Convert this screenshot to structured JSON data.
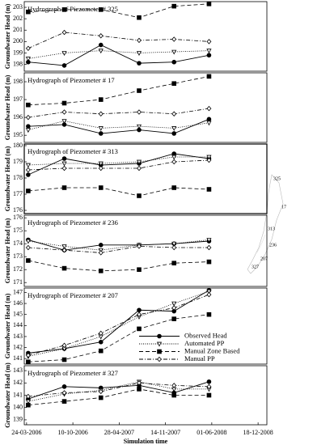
{
  "chart_data": [
    {
      "type": "line",
      "title": "Hydrograph of Piezometer # 325",
      "ylabel": "Groundwater Head (m)",
      "x": [
        "31-03-2006",
        "03-09-2006",
        "08-02-2007",
        "23-07-2007",
        "21-12-2007",
        "20-05-2008"
      ],
      "xlim": [
        "14-03-2006",
        "25-01-2009"
      ],
      "ylim": [
        197.4,
        203.5
      ],
      "yticks": [
        198,
        199,
        200,
        201,
        202,
        203
      ],
      "series": [
        {
          "color": "#000000",
          "line_style": "solid",
          "marker": "circle-filled",
          "values": [
            198.2,
            197.9,
            199.7,
            198.1,
            198.2,
            198.8
          ]
        },
        {
          "color": "#000000",
          "line_style": "dotted",
          "marker": "triangle-open",
          "values": [
            198.5,
            199.0,
            199.2,
            199.0,
            199.1,
            199.2
          ]
        },
        {
          "color": "#000000",
          "line_style": "dashed",
          "marker": "square-filled",
          "values": [
            202.6,
            202.8,
            202.8,
            202.1,
            203.1,
            203.3
          ]
        },
        {
          "color": "#000000",
          "line_style": "dashdot",
          "marker": "diamond-open",
          "values": [
            199.4,
            200.8,
            200.5,
            200.1,
            200.2,
            200.0
          ]
        }
      ]
    },
    {
      "type": "line",
      "title": "Hydrograph of Piezometer # 17",
      "ylabel": "Groundwater Head (m)",
      "x": [
        "31-03-2006",
        "03-09-2006",
        "08-02-2007",
        "23-07-2007",
        "21-12-2007",
        "20-05-2008"
      ],
      "xlim": [
        "14-03-2006",
        "25-01-2009"
      ],
      "ylim": [
        194.6,
        198.5
      ],
      "yticks": [
        195,
        196,
        197,
        198
      ],
      "series": [
        {
          "color": "#000000",
          "line_style": "solid",
          "marker": "circle-filled",
          "values": [
            195.5,
            195.6,
            195.1,
            195.3,
            195.1,
            195.9
          ]
        },
        {
          "color": "#000000",
          "line_style": "dotted",
          "marker": "triangle-open",
          "values": [
            195.3,
            195.8,
            195.4,
            195.5,
            195.4,
            195.7
          ]
        },
        {
          "color": "#000000",
          "line_style": "dashed",
          "marker": "square-filled",
          "values": [
            196.7,
            196.8,
            197.0,
            197.5,
            197.9,
            198.3
          ]
        },
        {
          "color": "#000000",
          "line_style": "dashdot",
          "marker": "diamond-open",
          "values": [
            196.0,
            196.3,
            196.2,
            196.3,
            196.2,
            196.5
          ]
        }
      ]
    },
    {
      "type": "line",
      "title": "Hydrograph of Piezometer # 313",
      "ylabel": "Groundwater Head (m)",
      "x": [
        "31-03-2006",
        "03-09-2006",
        "08-02-2007",
        "23-07-2007",
        "21-12-2007",
        "20-05-2008"
      ],
      "xlim": [
        "14-03-2006",
        "25-01-2009"
      ],
      "ylim": [
        175.8,
        180.1
      ],
      "yticks": [
        176,
        177,
        178,
        179,
        180
      ],
      "series": [
        {
          "color": "#000000",
          "line_style": "solid",
          "marker": "circle-filled",
          "values": [
            178.2,
            179.2,
            178.8,
            178.9,
            179.5,
            179.2
          ]
        },
        {
          "color": "#000000",
          "line_style": "dotted",
          "marker": "triangle-open",
          "values": [
            178.8,
            178.9,
            178.9,
            179.0,
            179.3,
            179.3
          ]
        },
        {
          "color": "#000000",
          "line_style": "dashed",
          "marker": "square-filled",
          "values": [
            177.2,
            177.4,
            177.4,
            176.9,
            177.4,
            177.3
          ]
        },
        {
          "color": "#000000",
          "line_style": "dashdot",
          "marker": "diamond-open",
          "values": [
            178.5,
            178.6,
            178.6,
            178.6,
            179.0,
            179.1
          ]
        }
      ]
    },
    {
      "type": "line",
      "title": "Hydrograph of Piezometer # 236",
      "ylabel": "Groundwater Head (m)",
      "x": [
        "31-03-2006",
        "03-09-2006",
        "08-02-2007",
        "23-07-2007",
        "21-12-2007",
        "20-05-2008"
      ],
      "xlim": [
        "14-03-2006",
        "25-01-2009"
      ],
      "ylim": [
        170.7,
        176.2
      ],
      "yticks": [
        171,
        172,
        173,
        174,
        175,
        176
      ],
      "series": [
        {
          "color": "#000000",
          "line_style": "solid",
          "marker": "circle-filled",
          "values": [
            174.3,
            173.5,
            173.9,
            173.9,
            174.0,
            174.2
          ]
        },
        {
          "color": "#000000",
          "line_style": "dotted",
          "marker": "triangle-open",
          "values": [
            174.2,
            173.8,
            173.5,
            173.9,
            174.0,
            174.3
          ]
        },
        {
          "color": "#000000",
          "line_style": "dashed",
          "marker": "square-filled",
          "values": [
            172.7,
            172.1,
            171.9,
            172.0,
            172.5,
            172.6
          ]
        },
        {
          "color": "#000000",
          "line_style": "dashdot",
          "marker": "diamond-open",
          "values": [
            173.7,
            173.5,
            173.3,
            173.8,
            173.7,
            173.7
          ]
        }
      ]
    },
    {
      "type": "line",
      "title": "Hydrograph of Piezometer # 207",
      "ylabel": "Groundwater Head (m)",
      "x": [
        "31-03-2006",
        "03-09-2006",
        "08-02-2007",
        "23-07-2007",
        "21-12-2007",
        "20-05-2008"
      ],
      "xlim": [
        "14-03-2006",
        "25-01-2009"
      ],
      "ylim": [
        140.5,
        147.4
      ],
      "yticks": [
        141,
        142,
        143,
        144,
        145,
        146,
        147
      ],
      "legend": "lower right",
      "series": [
        {
          "name": "Observed Head",
          "color": "#000000",
          "line_style": "solid",
          "marker": "circle-filled",
          "values": [
            141.5,
            141.9,
            142.5,
            145.4,
            145.3,
            147.2
          ]
        },
        {
          "name": "Automated PP",
          "color": "#000000",
          "line_style": "dotted",
          "marker": "triangle-open",
          "values": [
            141.2,
            141.9,
            143.0,
            144.8,
            146.0,
            147.1
          ]
        },
        {
          "name": "Manual Zone Based",
          "color": "#000000",
          "line_style": "dashed",
          "marker": "square-filled",
          "values": [
            140.7,
            140.9,
            141.7,
            143.7,
            144.6,
            145.0
          ]
        },
        {
          "name": "Manual PP",
          "color": "#000000",
          "line_style": "dashdot",
          "marker": "diamond-open",
          "values": [
            141.3,
            142.2,
            143.3,
            145.0,
            145.6,
            146.8
          ]
        }
      ]
    },
    {
      "type": "line",
      "title": "Hydrograph of Piezometer # 327",
      "ylabel": "Groundwater Head (m)",
      "xlabel": "Simulation time",
      "x": [
        "31-03-2006",
        "03-09-2006",
        "08-02-2007",
        "23-07-2007",
        "21-12-2007",
        "20-05-2008"
      ],
      "xlim": [
        "14-03-2006",
        "25-01-2009"
      ],
      "ylim": [
        138.6,
        143.4
      ],
      "yticks": [
        139,
        140,
        141,
        142,
        143
      ],
      "xticks": [
        "24-03-2006",
        "10-10-2006",
        "28-04-2007",
        "14-11-2007",
        "01-06-2008",
        "18-12-2008"
      ],
      "series": [
        {
          "color": "#000000",
          "line_style": "solid",
          "marker": "circle-filled",
          "values": [
            140.7,
            141.7,
            141.6,
            141.8,
            141.2,
            142.1
          ]
        },
        {
          "color": "#000000",
          "line_style": "dotted",
          "marker": "triangle-open",
          "values": [
            140.5,
            141.1,
            141.4,
            142.1,
            141.5,
            141.5
          ]
        },
        {
          "color": "#000000",
          "line_style": "dashed",
          "marker": "square-filled",
          "values": [
            140.2,
            140.5,
            140.8,
            141.5,
            141.0,
            141.0
          ]
        },
        {
          "color": "#000000",
          "line_style": "dashdot",
          "marker": "diamond-open",
          "values": [
            140.9,
            141.2,
            141.3,
            142.0,
            141.8,
            141.7
          ]
        }
      ]
    }
  ],
  "map_labels": [
    "325",
    "17",
    "313",
    "236",
    "207",
    "327"
  ]
}
